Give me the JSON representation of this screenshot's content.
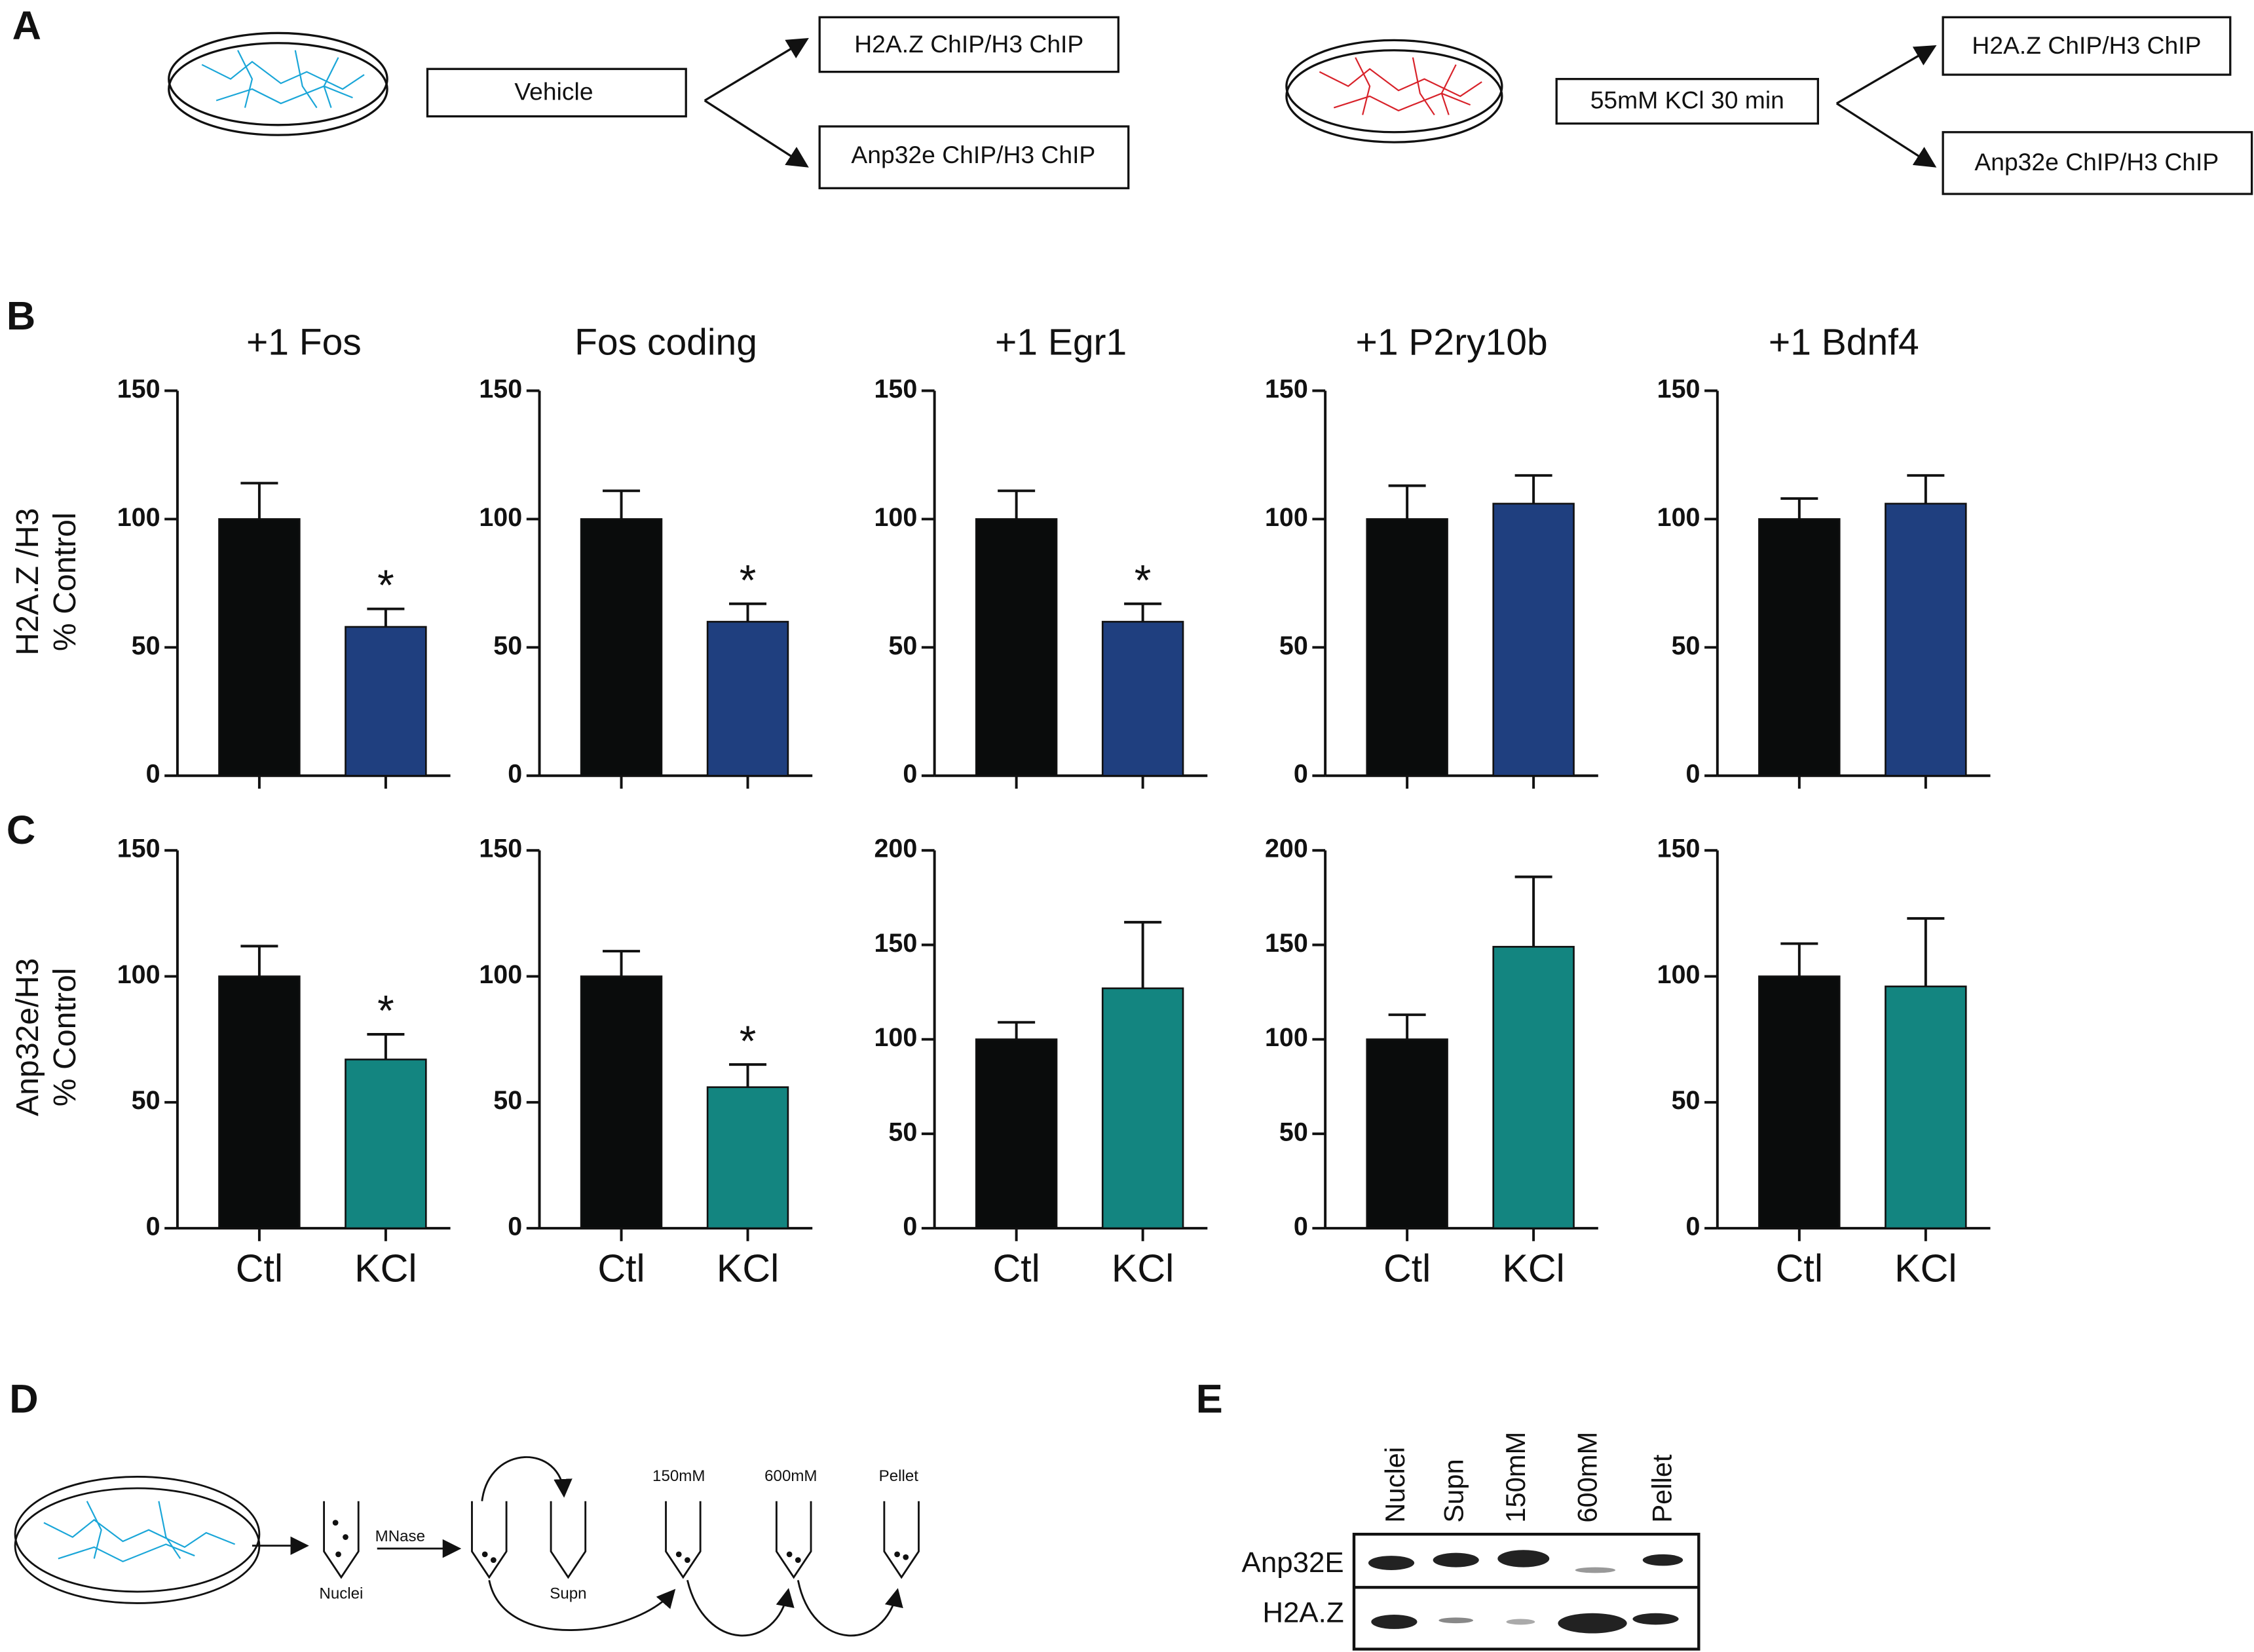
{
  "panel_labels": [
    "A",
    "B",
    "C",
    "D",
    "E"
  ],
  "panel_a": {
    "conditions": [
      {
        "treatment": "Vehicle",
        "outputs": [
          "H2A.Z ChIP/H3 ChIP",
          "Anp32e ChIP/H3 ChIP"
        ]
      },
      {
        "treatment": "55mM KCl 30 min",
        "outputs": [
          "H2A.Z ChIP/H3 ChIP",
          "Anp32e ChIP/H3 ChIP"
        ]
      }
    ]
  },
  "chart_data": [
    {
      "type": "bar",
      "title": "+1 Fos",
      "ylabel": [
        "H2A.Z /H3",
        "% Control"
      ],
      "categories": [
        null,
        null
      ],
      "values": [
        100,
        58
      ],
      "errors": [
        14,
        7
      ],
      "annotations": [
        null,
        "*"
      ],
      "colors": [
        "#0a0c0c",
        "#1f3f7f"
      ],
      "ylim": [
        0,
        150
      ],
      "yticks": [
        0,
        50,
        100,
        150
      ]
    },
    {
      "type": "bar",
      "title": "Fos coding",
      "categories": [
        null,
        null
      ],
      "values": [
        100,
        60
      ],
      "errors": [
        11,
        7
      ],
      "annotations": [
        null,
        "*"
      ],
      "colors": [
        "#0a0c0c",
        "#1f3f7f"
      ],
      "ylim": [
        0,
        150
      ],
      "yticks": [
        0,
        50,
        100,
        150
      ]
    },
    {
      "type": "bar",
      "title": "+1 Egr1",
      "categories": [
        null,
        null
      ],
      "values": [
        100,
        60
      ],
      "errors": [
        11,
        7
      ],
      "annotations": [
        null,
        "*"
      ],
      "colors": [
        "#0a0c0c",
        "#1f3f7f"
      ],
      "ylim": [
        0,
        150
      ],
      "yticks": [
        0,
        50,
        100,
        150
      ]
    },
    {
      "type": "bar",
      "title": "+1 P2ry10b",
      "categories": [
        null,
        null
      ],
      "values": [
        100,
        106
      ],
      "errors": [
        13,
        11
      ],
      "colors": [
        "#0a0c0c",
        "#1f3f7f"
      ],
      "ylim": [
        0,
        150
      ],
      "yticks": [
        0,
        50,
        100,
        150
      ]
    },
    {
      "type": "bar",
      "title": "+1 Bdnf4",
      "categories": [
        null,
        null
      ],
      "values": [
        100,
        106
      ],
      "errors": [
        8,
        11
      ],
      "colors": [
        "#0a0c0c",
        "#1f3f7f"
      ],
      "ylim": [
        0,
        150
      ],
      "yticks": [
        0,
        50,
        100,
        150
      ]
    },
    {
      "type": "bar",
      "ylabel": [
        "Anp32e/H3",
        "% Control"
      ],
      "categories": [
        "Ctl",
        "KCl"
      ],
      "values": [
        100,
        67
      ],
      "errors": [
        12,
        10
      ],
      "annotations": [
        null,
        "*"
      ],
      "colors": [
        "#0a0c0c",
        "#138580"
      ],
      "ylim": [
        0,
        150
      ],
      "yticks": [
        0,
        50,
        100,
        150
      ]
    },
    {
      "type": "bar",
      "categories": [
        "Ctl",
        "KCl"
      ],
      "values": [
        100,
        56
      ],
      "errors": [
        10,
        9
      ],
      "annotations": [
        null,
        "*"
      ],
      "colors": [
        "#0a0c0c",
        "#138580"
      ],
      "ylim": [
        0,
        150
      ],
      "yticks": [
        0,
        50,
        100,
        150
      ]
    },
    {
      "type": "bar",
      "categories": [
        "Ctl",
        "KCl"
      ],
      "values": [
        100,
        127
      ],
      "errors": [
        9,
        35
      ],
      "colors": [
        "#0a0c0c",
        "#138580"
      ],
      "ylim": [
        0,
        200
      ],
      "yticks": [
        0,
        50,
        100,
        150,
        200
      ]
    },
    {
      "type": "bar",
      "categories": [
        "Ctl",
        "KCl"
      ],
      "values": [
        100,
        149
      ],
      "errors": [
        13,
        37
      ],
      "colors": [
        "#0a0c0c",
        "#138580"
      ],
      "ylim": [
        0,
        200
      ],
      "yticks": [
        0,
        50,
        100,
        150,
        200
      ]
    },
    {
      "type": "bar",
      "categories": [
        "Ctl",
        "KCl"
      ],
      "values": [
        100,
        96
      ],
      "errors": [
        13,
        27
      ],
      "colors": [
        "#0a0c0c",
        "#138580"
      ],
      "ylim": [
        0,
        150
      ],
      "yticks": [
        0,
        50,
        100,
        150
      ]
    }
  ],
  "panel_d": {
    "steps": [
      "Nuclei",
      "MNase",
      "Supn",
      "150mM",
      "600mM",
      "Pellet"
    ]
  },
  "panel_e": {
    "lanes": [
      "Nuclei",
      "Supn",
      "150mM",
      "600mM",
      "Pellet"
    ],
    "rows": [
      "Anp32E",
      "H2A.Z"
    ]
  }
}
